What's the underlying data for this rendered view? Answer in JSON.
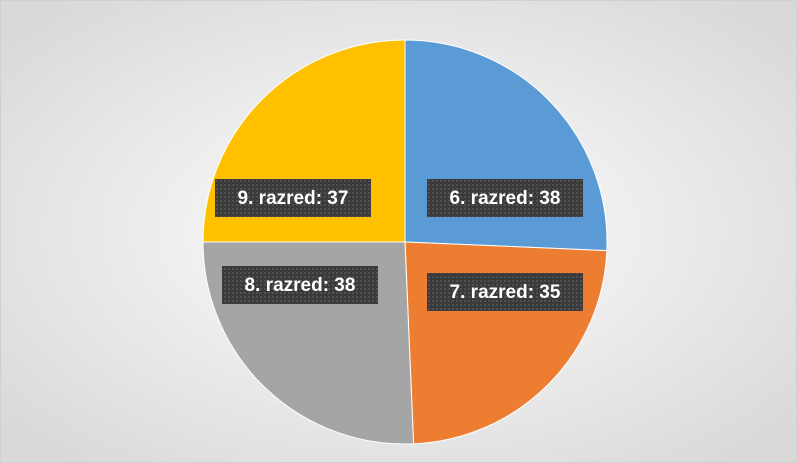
{
  "chart_data": {
    "type": "pie",
    "values": [
      38,
      35,
      38,
      37
    ],
    "value_labels": [
      "6. razred: 38",
      "7. razred: 35",
      "8. razred: 38",
      "9. razred: 37"
    ],
    "colors": [
      "#5b9bd5",
      "#ed7d31",
      "#a5a5a5",
      "#ffc000"
    ]
  }
}
